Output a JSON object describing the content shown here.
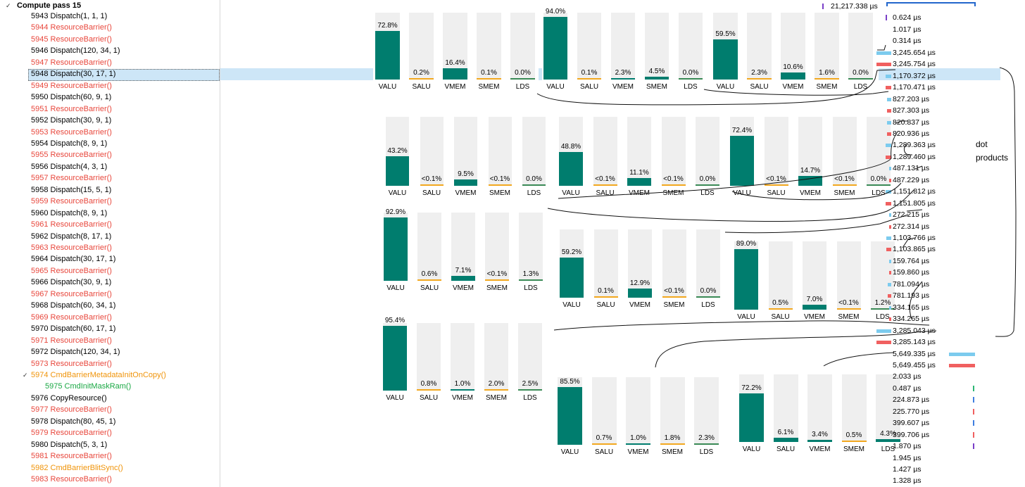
{
  "tree": {
    "pass_label": "Compute pass 15",
    "items": [
      {
        "text": "5943 Dispatch(1, 1, 1)",
        "kind": "black",
        "indent": 0
      },
      {
        "text": "5944 ResourceBarrier()",
        "kind": "red",
        "indent": 0
      },
      {
        "text": "5945 ResourceBarrier()",
        "kind": "red",
        "indent": 0
      },
      {
        "text": "5946 Dispatch(120, 34, 1)",
        "kind": "black",
        "indent": 0
      },
      {
        "text": "5947 ResourceBarrier()",
        "kind": "red",
        "indent": 0
      },
      {
        "text": "5948 Dispatch(30, 17, 1)",
        "kind": "black",
        "indent": 0,
        "selected": true
      },
      {
        "text": "5949 ResourceBarrier()",
        "kind": "red",
        "indent": 0
      },
      {
        "text": "5950 Dispatch(60, 9, 1)",
        "kind": "black",
        "indent": 0
      },
      {
        "text": "5951 ResourceBarrier()",
        "kind": "red",
        "indent": 0
      },
      {
        "text": "5952 Dispatch(30, 9, 1)",
        "kind": "black",
        "indent": 0
      },
      {
        "text": "5953 ResourceBarrier()",
        "kind": "red",
        "indent": 0
      },
      {
        "text": "5954 Dispatch(8, 9, 1)",
        "kind": "black",
        "indent": 0
      },
      {
        "text": "5955 ResourceBarrier()",
        "kind": "red",
        "indent": 0
      },
      {
        "text": "5956 Dispatch(4, 3, 1)",
        "kind": "black",
        "indent": 0
      },
      {
        "text": "5957 ResourceBarrier()",
        "kind": "red",
        "indent": 0
      },
      {
        "text": "5958 Dispatch(15, 5, 1)",
        "kind": "black",
        "indent": 0
      },
      {
        "text": "5959 ResourceBarrier()",
        "kind": "red",
        "indent": 0
      },
      {
        "text": "5960 Dispatch(8, 9, 1)",
        "kind": "black",
        "indent": 0
      },
      {
        "text": "5961 ResourceBarrier()",
        "kind": "red",
        "indent": 0
      },
      {
        "text": "5962 Dispatch(8, 17, 1)",
        "kind": "black",
        "indent": 0
      },
      {
        "text": "5963 ResourceBarrier()",
        "kind": "red",
        "indent": 0
      },
      {
        "text": "5964 Dispatch(30, 17, 1)",
        "kind": "black",
        "indent": 0
      },
      {
        "text": "5965 ResourceBarrier()",
        "kind": "red",
        "indent": 0
      },
      {
        "text": "5966 Dispatch(30, 9, 1)",
        "kind": "black",
        "indent": 0
      },
      {
        "text": "5967 ResourceBarrier()",
        "kind": "red",
        "indent": 0
      },
      {
        "text": "5968 Dispatch(60, 34, 1)",
        "kind": "black",
        "indent": 0
      },
      {
        "text": "5969 ResourceBarrier()",
        "kind": "red",
        "indent": 0
      },
      {
        "text": "5970 Dispatch(60, 17, 1)",
        "kind": "black",
        "indent": 0
      },
      {
        "text": "5971 ResourceBarrier()",
        "kind": "red",
        "indent": 0
      },
      {
        "text": "5972 Dispatch(120, 34, 1)",
        "kind": "black",
        "indent": 0
      },
      {
        "text": "5973 ResourceBarrier()",
        "kind": "red",
        "indent": 0
      },
      {
        "text": "5974 CmdBarrierMetadataInitOnCopy()",
        "kind": "orange",
        "indent": 0,
        "expanded": true
      },
      {
        "text": "5975 CmdInitMaskRam()",
        "kind": "green",
        "indent": 1
      },
      {
        "text": "5976 CopyResource()",
        "kind": "black",
        "indent": 0
      },
      {
        "text": "5977 ResourceBarrier()",
        "kind": "red",
        "indent": 0
      },
      {
        "text": "5978 Dispatch(80, 45, 1)",
        "kind": "black",
        "indent": 0
      },
      {
        "text": "5979 ResourceBarrier()",
        "kind": "red",
        "indent": 0
      },
      {
        "text": "5980 Dispatch(5, 3, 1)",
        "kind": "black",
        "indent": 0
      },
      {
        "text": "5981 ResourceBarrier()",
        "kind": "red",
        "indent": 0
      },
      {
        "text": "5982 CmdBarrierBlitSync()",
        "kind": "orange",
        "indent": 0
      },
      {
        "text": "5983 ResourceBarrier()",
        "kind": "red",
        "indent": 0
      }
    ]
  },
  "durations": [
    {
      "text": "21,217.338 µs",
      "bar": "none",
      "tick": "purple"
    },
    {
      "text": "0.624 µs",
      "bar": "none",
      "tick": "purple"
    },
    {
      "text": "1.017 µs",
      "bar": "none"
    },
    {
      "text": "0.314 µs",
      "bar": "none"
    },
    {
      "text": "3,245.654 µs",
      "bar": "blue",
      "level": 0.38
    },
    {
      "text": "3,245.754 µs",
      "bar": "red",
      "level": 0.38
    },
    {
      "text": "1,170.372 µs",
      "bar": "blue",
      "level": 0.14
    },
    {
      "text": "1,170.471 µs",
      "bar": "red",
      "level": 0.14
    },
    {
      "text": "827.203 µs",
      "bar": "blue",
      "level": 0.1
    },
    {
      "text": "827.303 µs",
      "bar": "red",
      "level": 0.1
    },
    {
      "text": "820.837 µs",
      "bar": "blue",
      "level": 0.1
    },
    {
      "text": "820.936 µs",
      "bar": "red",
      "level": 0.1
    },
    {
      "text": "1,289.363 µs",
      "bar": "blue",
      "level": 0.15
    },
    {
      "text": "1,289.460 µs",
      "bar": "red",
      "level": 0.15
    },
    {
      "text": "487.131 µs",
      "bar": "blue",
      "level": 0.06
    },
    {
      "text": "487.229 µs",
      "bar": "red",
      "level": 0.06
    },
    {
      "text": "1,151.812 µs",
      "bar": "blue",
      "level": 0.14
    },
    {
      "text": "1,151.805 µs",
      "bar": "red",
      "level": 0.14
    },
    {
      "text": "272.215 µs",
      "bar": "blue",
      "level": 0.03
    },
    {
      "text": "272.314 µs",
      "bar": "red",
      "level": 0.03
    },
    {
      "text": "1,103.766 µs",
      "bar": "blue",
      "level": 0.13
    },
    {
      "text": "1,103.865 µs",
      "bar": "red",
      "level": 0.13
    },
    {
      "text": "159.764 µs",
      "bar": "blue",
      "level": 0.02
    },
    {
      "text": "159.860 µs",
      "bar": "red",
      "level": 0.02
    },
    {
      "text": "781.094 µs",
      "bar": "blue",
      "level": 0.09
    },
    {
      "text": "781.193 µs",
      "bar": "red",
      "level": 0.09
    },
    {
      "text": "334.165 µs",
      "bar": "blue",
      "level": 0.04
    },
    {
      "text": "334.265 µs",
      "bar": "red",
      "level": 0.04
    },
    {
      "text": "3,285.043 µs",
      "bar": "blue",
      "level": 0.39
    },
    {
      "text": "3,285.143 µs",
      "bar": "red",
      "level": 0.39
    },
    {
      "text": "5,649.335 µs",
      "bar": "blue",
      "level": 0.67
    },
    {
      "text": "5,649.455 µs",
      "bar": "red",
      "level": 0.67
    },
    {
      "text": "2.033 µs",
      "bar": "none"
    },
    {
      "text": "0.487 µs",
      "bar": "tick-green"
    },
    {
      "text": "224.873 µs",
      "bar": "tick-blue"
    },
    {
      "text": "225.770 µs",
      "bar": "tick-red"
    },
    {
      "text": "399.607 µs",
      "bar": "tick-blue"
    },
    {
      "text": "399.706 µs",
      "bar": "tick-red"
    },
    {
      "text": "1.870 µs",
      "bar": "tick-purple"
    },
    {
      "text": "1.945 µs",
      "bar": "none"
    },
    {
      "text": "1.427 µs",
      "bar": "none"
    },
    {
      "text": "1.328 µs",
      "bar": "none"
    }
  ],
  "note": {
    "line1": "dot",
    "line2": "products"
  },
  "colors": {
    "fill": "#007d6e",
    "underline_orange": "#f2a81f",
    "underline_green": "#3a8a56",
    "track": "#efefef"
  },
  "chart_data": [
    {
      "type": "bar",
      "categories": [
        "VALU",
        "SALU",
        "VMEM",
        "SMEM",
        "LDS"
      ],
      "values": [
        72.8,
        0.2,
        16.4,
        0.1,
        0.0
      ],
      "labels": [
        "72.8%",
        "0.2%",
        "16.4%",
        "0.1%",
        "0.0%"
      ],
      "ylim": [
        0,
        100
      ]
    },
    {
      "type": "bar",
      "categories": [
        "VALU",
        "SALU",
        "VMEM",
        "SMEM",
        "LDS"
      ],
      "values": [
        94.0,
        0.1,
        2.3,
        4.5,
        0.0
      ],
      "labels": [
        "94.0%",
        "0.1%",
        "2.3%",
        "4.5%",
        "0.0%"
      ],
      "ylim": [
        0,
        100
      ]
    },
    {
      "type": "bar",
      "categories": [
        "VALU",
        "SALU",
        "VMEM",
        "SMEM",
        "LDS"
      ],
      "values": [
        59.5,
        2.3,
        10.6,
        1.6,
        0.0
      ],
      "labels": [
        "59.5%",
        "2.3%",
        "10.6%",
        "1.6%",
        "0.0%"
      ],
      "ylim": [
        0,
        100
      ]
    },
    {
      "type": "bar",
      "categories": [
        "VALU",
        "SALU",
        "VMEM",
        "SMEM",
        "LDS"
      ],
      "values": [
        43.2,
        0.05,
        9.5,
        0.05,
        0.0
      ],
      "labels": [
        "43.2%",
        "<0.1%",
        "9.5%",
        "<0.1%",
        "0.0%"
      ],
      "ylim": [
        0,
        100
      ]
    },
    {
      "type": "bar",
      "categories": [
        "VALU",
        "SALU",
        "VMEM",
        "SMEM",
        "LDS"
      ],
      "values": [
        48.8,
        0.05,
        11.1,
        0.05,
        0.0
      ],
      "labels": [
        "48.8%",
        "<0.1%",
        "11.1%",
        "<0.1%",
        "0.0%"
      ],
      "ylim": [
        0,
        100
      ]
    },
    {
      "type": "bar",
      "categories": [
        "VALU",
        "SALU",
        "VMEM",
        "SMEM",
        "LDS"
      ],
      "values": [
        72.4,
        0.05,
        14.7,
        0.05,
        0.0
      ],
      "labels": [
        "72.4%",
        "<0.1%",
        "14.7%",
        "<0.1%",
        "0.0%"
      ],
      "ylim": [
        0,
        100
      ]
    },
    {
      "type": "bar",
      "categories": [
        "VALU",
        "SALU",
        "VMEM",
        "SMEM",
        "LDS"
      ],
      "values": [
        92.9,
        0.6,
        7.1,
        0.05,
        1.3
      ],
      "labels": [
        "92.9%",
        "0.6%",
        "7.1%",
        "<0.1%",
        "1.3%"
      ],
      "ylim": [
        0,
        100
      ]
    },
    {
      "type": "bar",
      "categories": [
        "VALU",
        "SALU",
        "VMEM",
        "SMEM",
        "LDS"
      ],
      "values": [
        59.2,
        0.1,
        12.9,
        0.05,
        0.0
      ],
      "labels": [
        "59.2%",
        "0.1%",
        "12.9%",
        "<0.1%",
        "0.0%"
      ],
      "ylim": [
        0,
        100
      ]
    },
    {
      "type": "bar",
      "categories": [
        "VALU",
        "SALU",
        "VMEM",
        "SMEM",
        "LDS"
      ],
      "values": [
        89.0,
        0.5,
        7.0,
        0.05,
        1.2
      ],
      "labels": [
        "89.0%",
        "0.5%",
        "7.0%",
        "<0.1%",
        "1.2%"
      ],
      "ylim": [
        0,
        100
      ]
    },
    {
      "type": "bar",
      "categories": [
        "VALU",
        "SALU",
        "VMEM",
        "SMEM",
        "LDS"
      ],
      "values": [
        95.4,
        0.8,
        1.0,
        2.0,
        2.5
      ],
      "labels": [
        "95.4%",
        "0.8%",
        "1.0%",
        "2.0%",
        "2.5%"
      ],
      "ylim": [
        0,
        100
      ]
    },
    {
      "type": "bar",
      "categories": [
        "VALU",
        "SALU",
        "VMEM",
        "SMEM",
        "LDS"
      ],
      "values": [
        85.5,
        0.7,
        1.0,
        1.8,
        2.3
      ],
      "labels": [
        "85.5%",
        "0.7%",
        "1.0%",
        "1.8%",
        "2.3%"
      ],
      "ylim": [
        0,
        100
      ]
    },
    {
      "type": "bar",
      "categories": [
        "VALU",
        "SALU",
        "VMEM",
        "SMEM",
        "LDS"
      ],
      "values": [
        72.2,
        6.1,
        3.4,
        0.5,
        4.3
      ],
      "labels": [
        "72.2%",
        "6.1%",
        "3.4%",
        "0.5%",
        "4.3%"
      ],
      "ylim": [
        0,
        100
      ]
    }
  ]
}
